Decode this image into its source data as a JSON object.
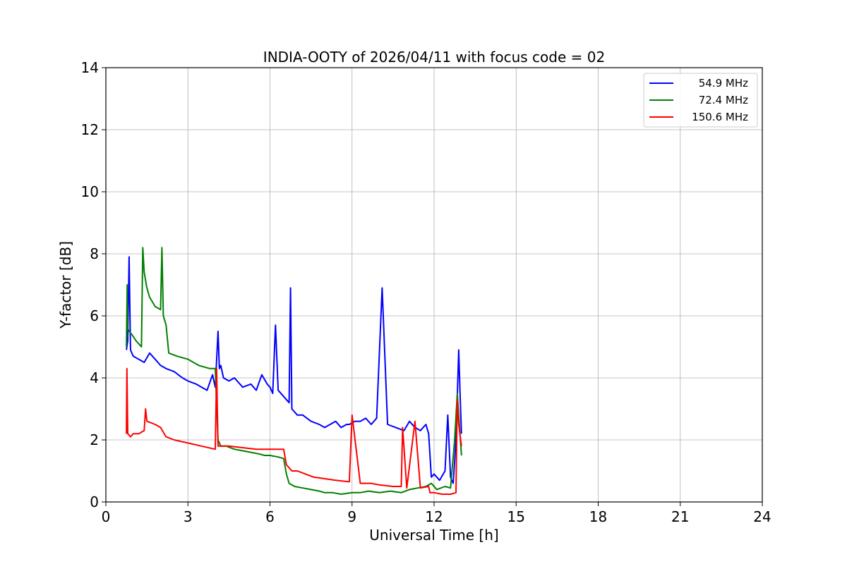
{
  "chart_data": {
    "type": "line",
    "title": "INDIA-OOTY of 2026/04/11 with focus code = 02",
    "xlabel": "Universal Time [h]",
    "ylabel": "Y-factor [dB]",
    "xlim": [
      0,
      24
    ],
    "ylim": [
      0,
      14
    ],
    "xticks": [
      0,
      3,
      6,
      9,
      12,
      15,
      18,
      21,
      24
    ],
    "yticks": [
      0,
      2,
      4,
      6,
      8,
      10,
      12,
      14
    ],
    "grid": true,
    "legend_position": "top-right",
    "series": [
      {
        "name": "54.9 MHz",
        "color": "#0000ff",
        "x": [
          0.75,
          0.8,
          0.85,
          0.9,
          0.95,
          1.0,
          1.2,
          1.4,
          1.6,
          1.8,
          2.0,
          2.2,
          2.5,
          2.8,
          3.0,
          3.3,
          3.5,
          3.7,
          3.9,
          4.0,
          4.1,
          4.15,
          4.2,
          4.3,
          4.5,
          4.7,
          5.0,
          5.3,
          5.5,
          5.7,
          5.9,
          6.0,
          6.1,
          6.2,
          6.3,
          6.5,
          6.7,
          6.75,
          6.8,
          7.0,
          7.2,
          7.5,
          7.8,
          8.0,
          8.2,
          8.4,
          8.6,
          8.8,
          8.9,
          9.1,
          9.3,
          9.5,
          9.7,
          9.9,
          10.1,
          10.3,
          10.6,
          10.9,
          11.1,
          11.3,
          11.5,
          11.7,
          11.8,
          11.9,
          12.0,
          12.2,
          12.4,
          12.5,
          12.6,
          12.7,
          12.8,
          12.9,
          12.95,
          13.0
        ],
        "y": [
          4.9,
          5.2,
          7.9,
          4.9,
          4.8,
          4.7,
          4.6,
          4.5,
          4.8,
          4.6,
          4.4,
          4.3,
          4.2,
          4.0,
          3.9,
          3.8,
          3.7,
          3.6,
          4.1,
          3.7,
          5.5,
          4.3,
          4.4,
          4.0,
          3.9,
          4.0,
          3.7,
          3.8,
          3.6,
          4.1,
          3.8,
          3.7,
          3.5,
          5.7,
          3.6,
          3.4,
          3.2,
          6.9,
          3.0,
          2.8,
          2.8,
          2.6,
          2.5,
          2.4,
          2.5,
          2.6,
          2.4,
          2.5,
          2.5,
          2.6,
          2.6,
          2.7,
          2.5,
          2.7,
          6.9,
          2.5,
          2.4,
          2.3,
          2.6,
          2.4,
          2.3,
          2.5,
          2.2,
          0.8,
          0.9,
          0.7,
          1.0,
          2.8,
          0.8,
          0.6,
          2.0,
          4.9,
          3.5,
          2.2
        ]
      },
      {
        "name": "72.4 MHz",
        "color": "#008000",
        "x": [
          0.75,
          0.78,
          0.8,
          0.85,
          0.95,
          1.1,
          1.3,
          1.35,
          1.4,
          1.5,
          1.6,
          1.8,
          2.0,
          2.05,
          2.1,
          2.2,
          2.3,
          2.6,
          3.0,
          3.4,
          3.8,
          4.0,
          4.1,
          4.2,
          4.4,
          4.7,
          5.0,
          5.3,
          5.6,
          5.8,
          6.0,
          6.3,
          6.5,
          6.6,
          6.7,
          6.9,
          7.2,
          7.5,
          7.8,
          8.0,
          8.3,
          8.6,
          9.0,
          9.3,
          9.6,
          10.0,
          10.4,
          10.8,
          11.1,
          11.4,
          11.7,
          11.9,
          12.1,
          12.4,
          12.6,
          12.75,
          12.85,
          12.9,
          13.0
        ],
        "y": [
          5.0,
          7.0,
          5.6,
          5.5,
          5.4,
          5.2,
          5.0,
          8.2,
          7.4,
          6.9,
          6.6,
          6.3,
          6.2,
          8.2,
          6.0,
          5.7,
          4.8,
          4.7,
          4.6,
          4.4,
          4.3,
          4.3,
          2.0,
          1.8,
          1.8,
          1.7,
          1.65,
          1.6,
          1.55,
          1.5,
          1.5,
          1.45,
          1.4,
          0.9,
          0.6,
          0.5,
          0.45,
          0.4,
          0.35,
          0.3,
          0.3,
          0.25,
          0.3,
          0.3,
          0.35,
          0.3,
          0.35,
          0.3,
          0.4,
          0.45,
          0.5,
          0.6,
          0.4,
          0.5,
          0.45,
          2.0,
          3.5,
          2.8,
          1.5
        ]
      },
      {
        "name": "150.6 MHz",
        "color": "#ff0000",
        "x": [
          0.75,
          0.77,
          0.8,
          0.9,
          1.0,
          1.2,
          1.4,
          1.45,
          1.5,
          1.8,
          2.0,
          2.2,
          2.5,
          3.0,
          3.5,
          4.0,
          4.05,
          4.1,
          4.5,
          5.0,
          5.5,
          6.0,
          6.3,
          6.5,
          6.6,
          6.8,
          7.0,
          7.3,
          7.6,
          8.0,
          8.4,
          8.9,
          9.0,
          9.3,
          9.7,
          10.0,
          10.5,
          10.8,
          10.85,
          11.0,
          11.3,
          11.5,
          11.8,
          11.85,
          12.0,
          12.3,
          12.6,
          12.8,
          12.85,
          12.9,
          13.0
        ],
        "y": [
          2.2,
          4.3,
          2.2,
          2.1,
          2.2,
          2.2,
          2.3,
          3.0,
          2.6,
          2.5,
          2.4,
          2.1,
          2.0,
          1.9,
          1.8,
          1.7,
          4.3,
          1.8,
          1.8,
          1.75,
          1.7,
          1.7,
          1.7,
          1.7,
          1.2,
          1.0,
          1.0,
          0.9,
          0.8,
          0.75,
          0.7,
          0.65,
          2.8,
          0.6,
          0.6,
          0.55,
          0.5,
          0.5,
          2.4,
          0.45,
          2.6,
          0.45,
          0.5,
          0.3,
          0.3,
          0.25,
          0.25,
          0.3,
          3.3,
          2.5,
          1.8
        ]
      }
    ]
  }
}
